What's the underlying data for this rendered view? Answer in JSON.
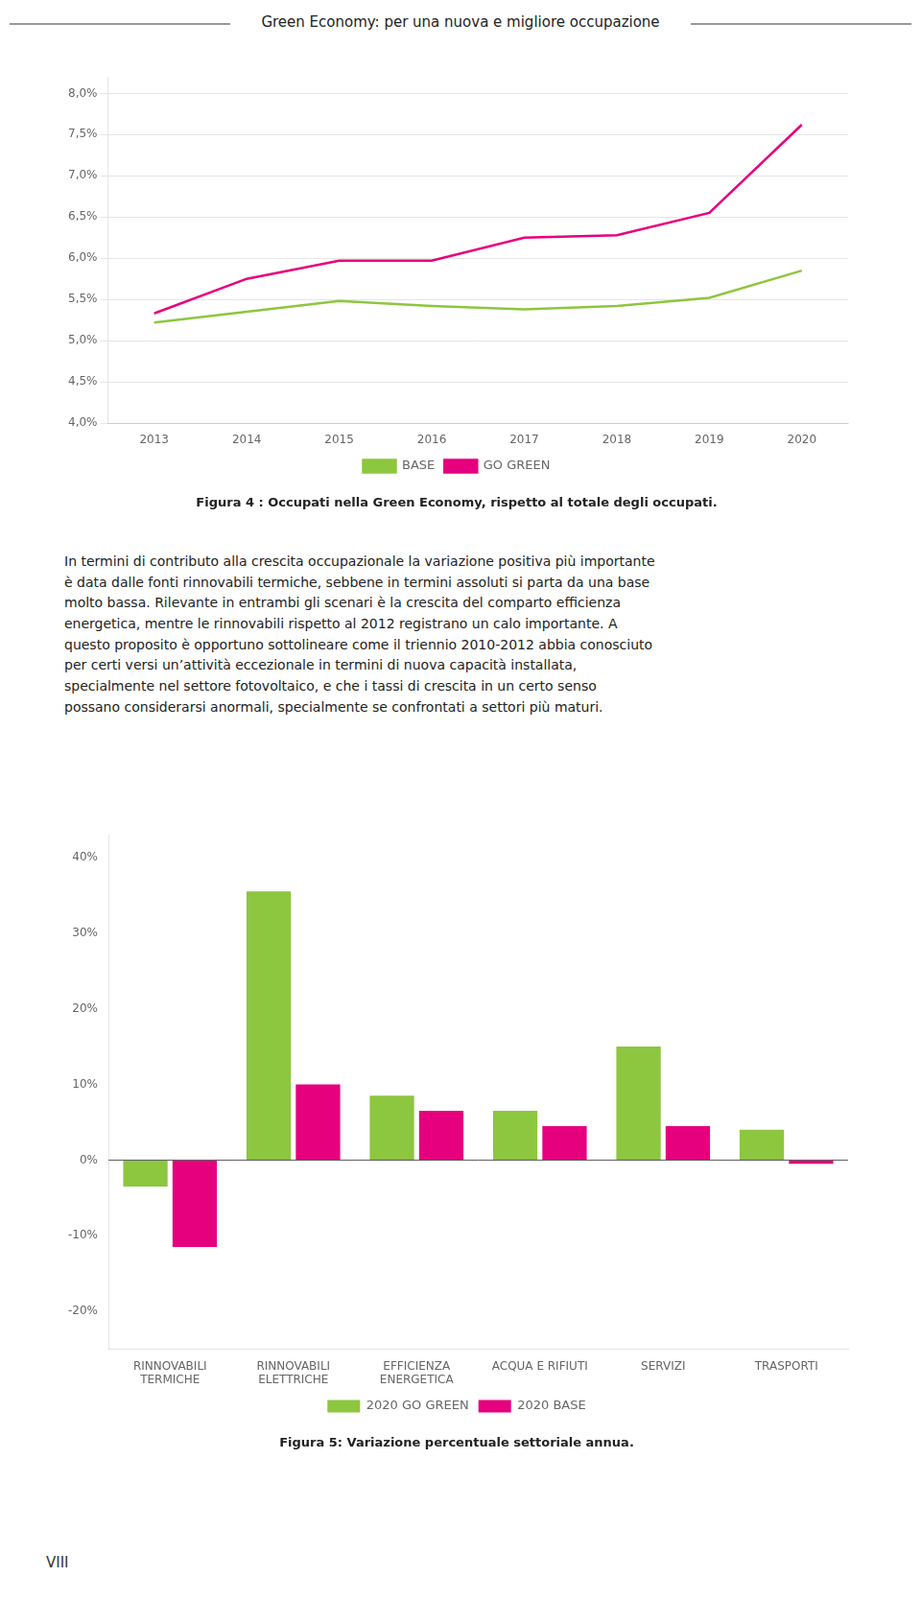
{
  "annotations": {
    "header": "Green Economy: per una nuova e migliore occupazione",
    "body": [
      "In termini di contributo alla crescita occupazionale la variazione positiva più importante",
      "è data dalle fonti rinnovabili termiche, sebbene in termini assoluti si parta da una base",
      "molto bassa. Rilevante in entrambi gli scenari è la crescita del comparto efficienza",
      "energetica, mentre le rinnovabili rispetto al 2012 registrano un calo importante. A",
      "questo proposito è opportuno sottolineare come il triennio 2010-2012 abbia conosciuto",
      "per certi versi un’attività eccezionale in termini di nuova capacità installata,",
      "specialmente nel settore fotovoltaico, e che i tassi di crescita in un certo senso",
      "possano considerarsi anormali, specialmente se confrontati a settori più maturi."
    ],
    "page_label": "VIII"
  },
  "chart_data": [
    {
      "type": "line",
      "title": "Figura 4 : Occupati nella Green Economy, rispetto al totale degli occupati.",
      "x": [
        2013,
        2014,
        2015,
        2016,
        2017,
        2018,
        2019,
        2020
      ],
      "series": [
        {
          "name": "BASE",
          "color": "#8dc63f",
          "values": [
            5.22,
            5.35,
            5.48,
            5.42,
            5.38,
            5.42,
            5.52,
            5.85
          ]
        },
        {
          "name": "GO GREEN",
          "color": "#e6007e",
          "values": [
            5.33,
            5.75,
            5.97,
            5.97,
            6.25,
            6.28,
            6.55,
            7.62
          ]
        }
      ],
      "xlim": [
        2012.5,
        2020.5
      ],
      "xticks": [
        2013,
        2014,
        2015,
        2016,
        2017,
        2018,
        2019,
        2020
      ],
      "ylim": [
        4.0,
        8.2
      ],
      "yticks": [
        {
          "value": 4.0,
          "label": "4,0%"
        },
        {
          "value": 4.5,
          "label": "4,5%"
        },
        {
          "value": 5.0,
          "label": "5,0%"
        },
        {
          "value": 5.5,
          "label": "5,5%"
        },
        {
          "value": 6.0,
          "label": "6,0%"
        },
        {
          "value": 6.5,
          "label": "6,5%"
        },
        {
          "value": 7.0,
          "label": "7,0%"
        },
        {
          "value": 7.5,
          "label": "7,5%"
        },
        {
          "value": 8.0,
          "label": "8,0%"
        }
      ],
      "grid": "y",
      "legend": "bottom",
      "marker": "none"
    },
    {
      "type": "bar",
      "title": "Figura 5: Variazione percentuale settoriale annua.",
      "categories": [
        "RINNOVABILI\nTERMICHE",
        "RINNOVABILI\nELETTRICHE",
        "EFFICIENZA\nENERGETICA",
        "ACQUA E RIFIUTI",
        "SERVIZI",
        "TRASPORTI"
      ],
      "series": [
        {
          "name": "2020 GO GREEN",
          "color": "#8dc63f",
          "values": [
            -3.5,
            35.5,
            8.5,
            6.5,
            15.0,
            4.0
          ]
        },
        {
          "name": "2020 BASE",
          "color": "#e6007e",
          "values": [
            -11.5,
            10.0,
            6.5,
            4.5,
            4.5,
            -0.5
          ]
        }
      ],
      "ylim": [
        -25,
        43
      ],
      "yticks": [
        {
          "value": -20,
          "label": "-20%"
        },
        {
          "value": -10,
          "label": "-10%"
        },
        {
          "value": 0,
          "label": "0%"
        },
        {
          "value": 10,
          "label": "10%"
        },
        {
          "value": 20,
          "label": "20%"
        },
        {
          "value": 30,
          "label": "30%"
        },
        {
          "value": 40,
          "label": "40%"
        }
      ],
      "grid": false,
      "legend": "bottom"
    }
  ]
}
